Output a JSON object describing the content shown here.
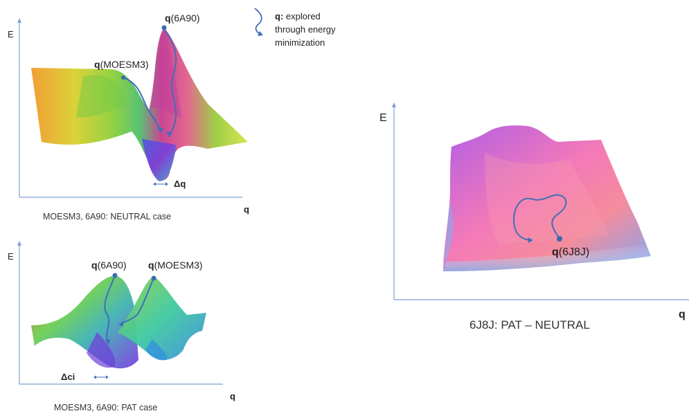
{
  "panel_a": {
    "axis_y": "E",
    "axis_x": "q",
    "point_top_bold": "q",
    "point_top_rest": "(6A90)",
    "point_left_bold": "q",
    "point_left_rest": "(MOESM3)",
    "delta_label": "Δq",
    "caption": "MOESM3, 6A90: NEUTRAL case"
  },
  "legend": {
    "term": "q:",
    "line1": "explored",
    "line2": "through energy",
    "line3": "minimization"
  },
  "panel_b": {
    "axis_y": "E",
    "axis_x": "q",
    "point_left_bold": "q",
    "point_left_rest": "(6A90)",
    "point_right_bold": "q",
    "point_right_rest": "(MOESM3)",
    "delta_label": "Δci",
    "caption": "MOESM3, 6A90: PAT case"
  },
  "panel_c": {
    "axis_y": "E",
    "axis_x": "q",
    "point_bold": "q",
    "point_rest": "(6J8J)",
    "caption": "6J8J: PAT – NEUTRAL"
  },
  "colors": {
    "axis": "#7f9fd2",
    "path": "#3f6fb7",
    "point": "#3b6bb0"
  }
}
